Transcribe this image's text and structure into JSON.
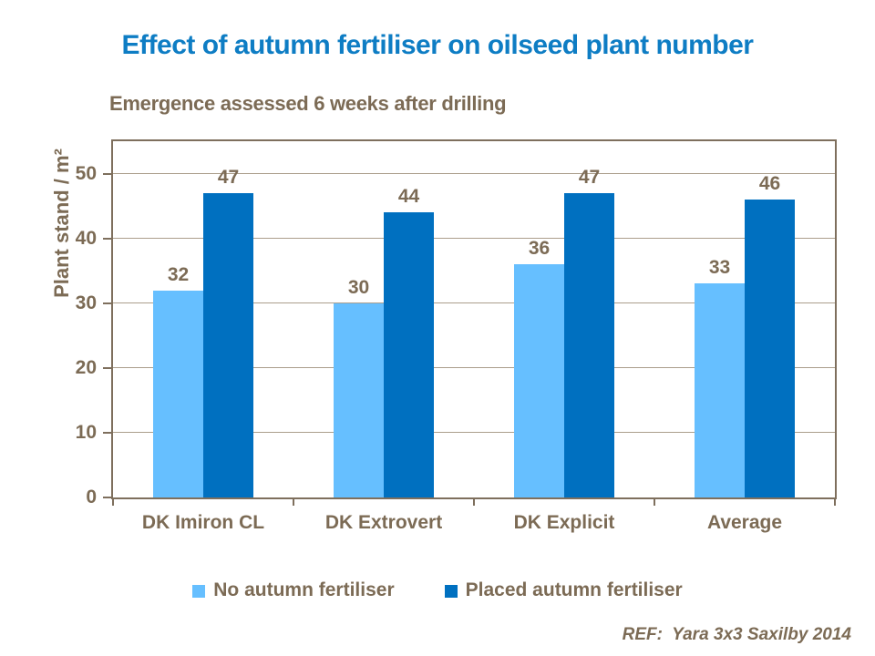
{
  "page": {
    "title": "Effect of autumn fertiliser on oilseed plant number",
    "subtitle": "Emergence assessed 6 weeks after drilling",
    "reference": "REF:  Yara 3x3 Saxilby 2014"
  },
  "chart_data": {
    "type": "bar",
    "title": "Effect of autumn fertiliser on oilseed plant number",
    "subtitle": "Emergence assessed 6 weeks after drilling",
    "xlabel": "",
    "ylabel": "Plant stand / m²",
    "categories": [
      "DK Imiron CL",
      "DK Extrovert",
      "DK Explicit",
      "Average"
    ],
    "series": [
      {
        "name": "No autumn fertiliser",
        "color": "#66BFFF",
        "values": [
          32,
          30,
          36,
          33
        ]
      },
      {
        "name": "Placed autumn fertiliser",
        "color": "#0070C0",
        "values": [
          47,
          44,
          47,
          46
        ]
      }
    ],
    "ylim": [
      0,
      55
    ],
    "yticks": [
      0,
      10,
      20,
      30,
      40,
      50
    ],
    "grid": true,
    "legend_position": "bottom",
    "data_labels": true
  },
  "colors": {
    "title_blue": "#0E7DC4",
    "text_brown": "#7C6B55",
    "axis_border": "#7E6F5D",
    "gridline": "#AB9E8C",
    "series_light_blue": "#66BFFF",
    "series_dark_blue": "#0070C0",
    "background": "#FFFFFF"
  }
}
